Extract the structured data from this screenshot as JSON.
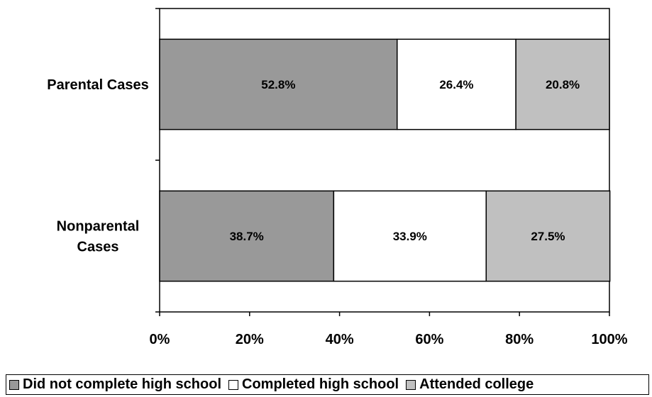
{
  "chart_data": {
    "type": "bar",
    "orientation": "horizontal",
    "stacked": true,
    "categories": [
      "Parental Cases",
      "Nonparental Cases"
    ],
    "category_label_lines": [
      [
        "Parental Cases"
      ],
      [
        "Nonparental",
        "Cases"
      ]
    ],
    "series": [
      {
        "name": "Did not complete high school",
        "values": [
          52.8,
          38.7
        ],
        "labels": [
          "52.8%",
          "38.7%"
        ],
        "color": "#999999"
      },
      {
        "name": "Completed high school",
        "values": [
          26.4,
          33.9
        ],
        "labels": [
          "26.4%",
          "33.9%"
        ],
        "color": "#ffffff"
      },
      {
        "name": "Attended college",
        "values": [
          20.8,
          27.5
        ],
        "labels": [
          "20.8%",
          "27.5%"
        ],
        "color": "#c0c0c0"
      }
    ],
    "xlim": [
      0,
      100
    ],
    "xticks": [
      "0%",
      "20%",
      "40%",
      "60%",
      "80%",
      "100%"
    ],
    "title": "",
    "xlabel": "",
    "ylabel": "",
    "grid": false,
    "legend_position": "bottom"
  }
}
